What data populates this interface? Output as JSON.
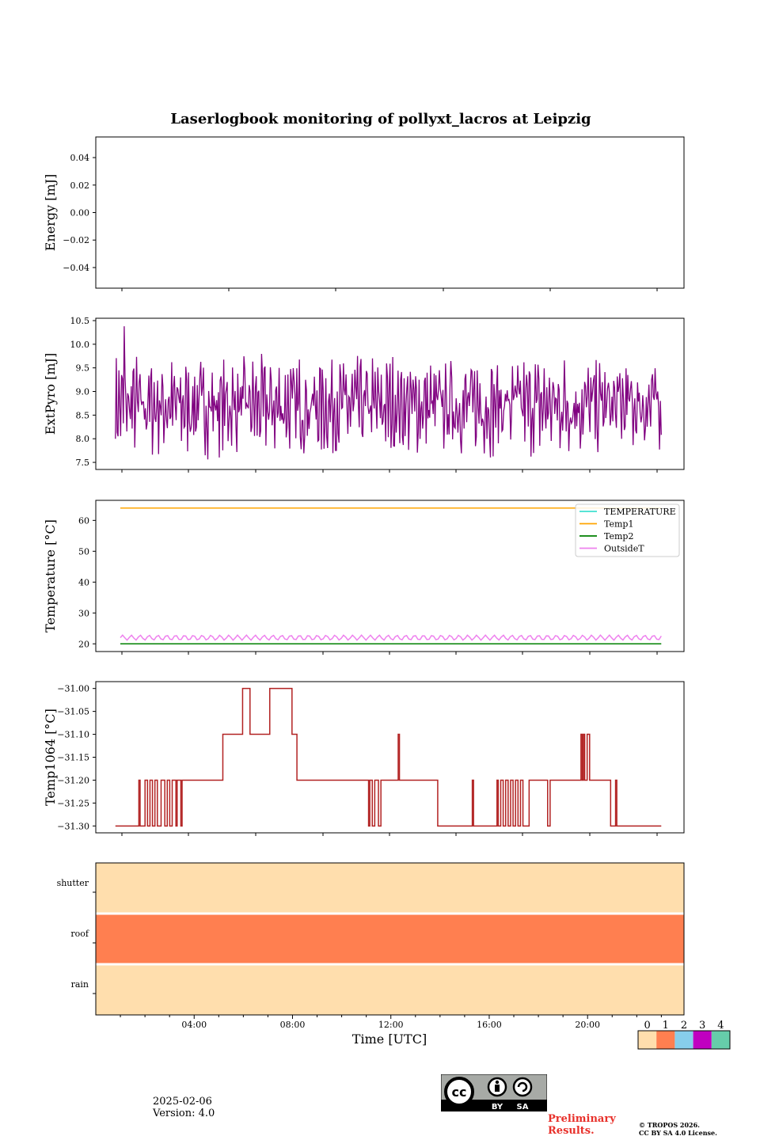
{
  "figure": {
    "title": "Laserlogbook monitoring of pollyxt_lacros at Leipzig",
    "date": "2025-02-06",
    "version": "Version: 4.0",
    "preliminary_line1": "Preliminary",
    "preliminary_line2": "Results.",
    "copyright_line1": "© TROPOS 2026.",
    "copyright_line2": "CC BY SA 4.0 License.",
    "license_badge": {
      "by": "BY",
      "sa": "SA"
    }
  },
  "chart_data": [
    {
      "type": "line",
      "name": "energy",
      "ylabel": "Energy [mJ]",
      "ylim": [
        -0.055,
        0.055
      ],
      "yticks": [
        -0.04,
        -0.02,
        0.0,
        0.02,
        0.04
      ],
      "ytick_labels": [
        "−0.04",
        "−0.02",
        "0.00",
        "0.02",
        "0.04"
      ],
      "series": []
    },
    {
      "type": "line",
      "name": "extpyro",
      "ylabel": "ExtPyro [mJ]",
      "ylim": [
        7.35,
        10.55
      ],
      "yticks": [
        7.5,
        8.0,
        8.5,
        9.0,
        9.5,
        10.0,
        10.5
      ],
      "ytick_labels": [
        "7.5",
        "8.0",
        "8.5",
        "9.0",
        "9.5",
        "10.0",
        "10.5"
      ],
      "x_range_hours": [
        0.8,
        22.9
      ],
      "series": [
        {
          "name": "ExtPyro",
          "color": "#800080",
          "mean": 8.7,
          "amplitude": 0.55,
          "min": 7.5,
          "max": 10.38,
          "peak_at_hour": 1.15
        }
      ]
    },
    {
      "type": "line",
      "name": "temperature",
      "ylabel": "Temperature [°C]",
      "ylim": [
        17.5,
        66.5
      ],
      "yticks": [
        20,
        30,
        40,
        50,
        60
      ],
      "ytick_labels": [
        "20",
        "30",
        "40",
        "50",
        "60"
      ],
      "legend_position": "top-right",
      "series": [
        {
          "name": "TEMPERATURE",
          "color": "#40e0d0",
          "value": null
        },
        {
          "name": "Temp1",
          "color": "#ffa500",
          "value": 64.0
        },
        {
          "name": "Temp2",
          "color": "#008000",
          "value": 20.0
        },
        {
          "name": "OutsideT",
          "color": "#ee82ee",
          "value": 22.0,
          "amplitude": 0.8
        }
      ]
    },
    {
      "type": "line",
      "name": "temp1064",
      "ylabel": "Temp1064 [°C]",
      "ylim": [
        -31.315,
        -30.985
      ],
      "yticks": [
        -31.3,
        -31.25,
        -31.2,
        -31.15,
        -31.1,
        -31.05,
        -31.0
      ],
      "ytick_labels": [
        "−31.30",
        "−31.25",
        "−31.20",
        "−31.15",
        "−31.10",
        "−31.05",
        "−31.00"
      ],
      "series": [
        {
          "name": "Temp1064",
          "color": "#b22222",
          "steps": [
            [
              0.8,
              -31.3
            ],
            [
              1.7,
              -31.3
            ],
            [
              1.75,
              -31.2
            ],
            [
              1.8,
              -31.3
            ],
            [
              2.0,
              -31.2
            ],
            [
              2.1,
              -31.3
            ],
            [
              2.2,
              -31.2
            ],
            [
              2.3,
              -31.3
            ],
            [
              2.4,
              -31.2
            ],
            [
              2.5,
              -31.3
            ],
            [
              2.65,
              -31.2
            ],
            [
              2.8,
              -31.3
            ],
            [
              2.9,
              -31.2
            ],
            [
              3.0,
              -31.3
            ],
            [
              3.1,
              -31.2
            ],
            [
              3.25,
              -31.3
            ],
            [
              3.3,
              -31.2
            ],
            [
              3.45,
              -31.3
            ],
            [
              3.5,
              -31.2
            ],
            [
              5.1,
              -31.2
            ],
            [
              5.15,
              -31.1
            ],
            [
              5.9,
              -31.1
            ],
            [
              5.95,
              -31.0
            ],
            [
              6.2,
              -31.0
            ],
            [
              6.25,
              -31.1
            ],
            [
              7.0,
              -31.1
            ],
            [
              7.05,
              -31.0
            ],
            [
              7.9,
              -31.0
            ],
            [
              7.95,
              -31.1
            ],
            [
              8.1,
              -31.1
            ],
            [
              8.15,
              -31.2
            ],
            [
              11.0,
              -31.2
            ],
            [
              11.05,
              -31.3
            ],
            [
              11.1,
              -31.2
            ],
            [
              11.2,
              -31.3
            ],
            [
              11.3,
              -31.2
            ],
            [
              11.45,
              -31.3
            ],
            [
              11.55,
              -31.2
            ],
            [
              12.2,
              -31.2
            ],
            [
              12.25,
              -31.1
            ],
            [
              12.3,
              -31.2
            ],
            [
              13.8,
              -31.2
            ],
            [
              13.85,
              -31.3
            ],
            [
              15.2,
              -31.3
            ],
            [
              15.25,
              -31.2
            ],
            [
              15.3,
              -31.3
            ],
            [
              16.2,
              -31.3
            ],
            [
              16.25,
              -31.2
            ],
            [
              16.3,
              -31.3
            ],
            [
              16.4,
              -31.2
            ],
            [
              16.5,
              -31.3
            ],
            [
              16.6,
              -31.2
            ],
            [
              16.7,
              -31.3
            ],
            [
              16.8,
              -31.2
            ],
            [
              16.9,
              -31.3
            ],
            [
              17.0,
              -31.2
            ],
            [
              17.1,
              -31.3
            ],
            [
              17.2,
              -31.2
            ],
            [
              17.3,
              -31.3
            ],
            [
              17.5,
              -31.3
            ],
            [
              17.55,
              -31.2
            ],
            [
              18.2,
              -31.2
            ],
            [
              18.3,
              -31.3
            ],
            [
              18.4,
              -31.2
            ],
            [
              19.6,
              -31.2
            ],
            [
              19.65,
              -31.1
            ],
            [
              19.7,
              -31.2
            ],
            [
              19.75,
              -31.1
            ],
            [
              19.8,
              -31.2
            ],
            [
              19.9,
              -31.1
            ],
            [
              20.0,
              -31.2
            ],
            [
              20.8,
              -31.2
            ],
            [
              20.85,
              -31.3
            ],
            [
              21.0,
              -31.3
            ],
            [
              21.05,
              -31.2
            ],
            [
              21.1,
              -31.3
            ],
            [
              22.9,
              -31.3
            ]
          ]
        }
      ]
    },
    {
      "type": "heatmap",
      "name": "status",
      "rows": [
        "shutter",
        "roof",
        "rain"
      ],
      "row_values": [
        0,
        1,
        0
      ],
      "xlabel": "Time [UTC]",
      "xticks": [
        "04:00",
        "08:00",
        "12:00",
        "16:00",
        "20:00"
      ],
      "colorbar": {
        "ticks": [
          "0",
          "1",
          "2",
          "3",
          "4"
        ],
        "colors": [
          "#ffdead",
          "#ff7f50",
          "#87ceeb",
          "#c000c0",
          "#66cdaa"
        ]
      }
    }
  ]
}
